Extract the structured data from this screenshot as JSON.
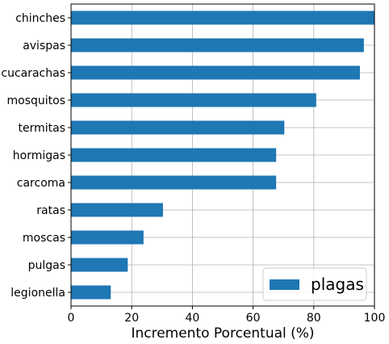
{
  "chart_data": {
    "type": "bar",
    "orientation": "horizontal",
    "categories": [
      "chinches",
      "avispas",
      "cucarachas",
      "mosquitos",
      "termitas",
      "hormigas",
      "carcoma",
      "ratas",
      "moscas",
      "pulgas",
      "legionella"
    ],
    "series": [
      {
        "name": "plagas",
        "values": [
          100,
          96.5,
          95.2,
          80.8,
          70.3,
          67.6,
          67.6,
          30.3,
          23.9,
          18.7,
          13.1
        ],
        "color": "#1f77b4"
      }
    ],
    "title": "",
    "xlabel": "Incremento Porcentual (%)",
    "ylabel": "",
    "xlim": [
      0,
      100
    ],
    "xticks": [
      0,
      20,
      40,
      60,
      80,
      100
    ],
    "grid": true,
    "legend_position": "bottom-right"
  }
}
